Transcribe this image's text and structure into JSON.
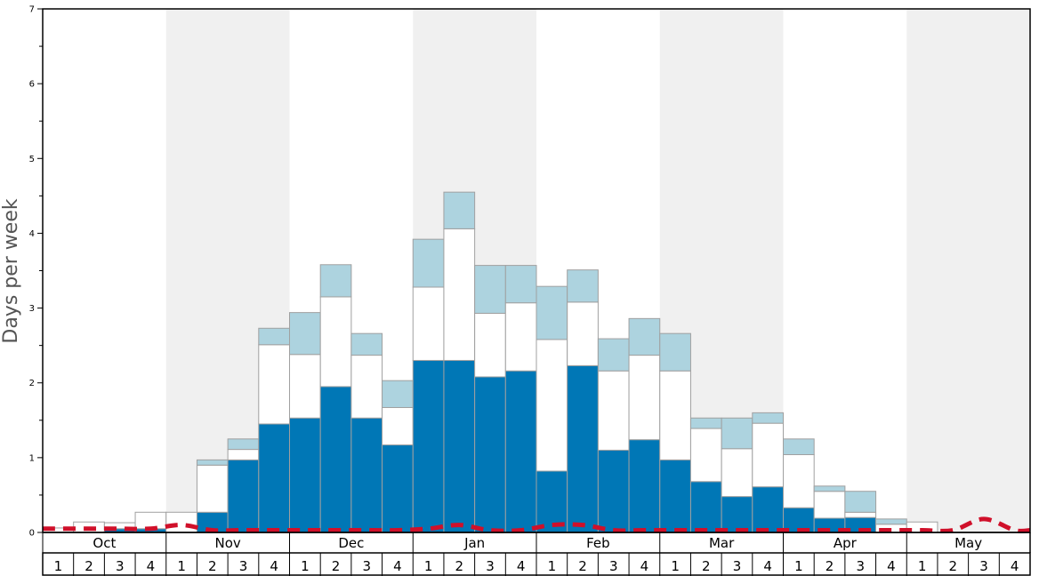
{
  "chart_data": {
    "type": "bar",
    "stacked": true,
    "ylabel": "Days per week",
    "ylim": [
      0,
      7
    ],
    "yticks": [
      "0",
      "1",
      "2",
      "3",
      "4",
      "5",
      "6",
      "7"
    ],
    "months": [
      "Oct",
      "Nov",
      "Dec",
      "Jan",
      "Feb",
      "Mar",
      "Apr",
      "May"
    ],
    "week_labels": [
      "1",
      "2",
      "3",
      "4"
    ],
    "shaded_months": [
      "Nov",
      "Jan",
      "Mar",
      "May"
    ],
    "colors": {
      "dark": "#0077b6",
      "white": "#ffffff",
      "light": "#add3df",
      "line": "#d0102a",
      "shade": "#f0f0f0",
      "bar_stroke": "#a0a0a0"
    },
    "series": [
      {
        "color": "#0077b6",
        "values": [
          0,
          0,
          0.05,
          0.05,
          0,
          0.27,
          0.97,
          1.45,
          1.53,
          1.95,
          1.53,
          1.17,
          2.3,
          2.3,
          2.08,
          2.16,
          0.82,
          2.23,
          1.1,
          1.24,
          0.97,
          0.68,
          0.48,
          0.61,
          0.33,
          0.19,
          0.2,
          0,
          0,
          0,
          0,
          0
        ]
      },
      {
        "color": "#ffffff",
        "values": [
          0.06,
          0.14,
          0.08,
          0.22,
          0.27,
          0.63,
          0.14,
          1.06,
          0.85,
          1.2,
          0.84,
          0.5,
          0.98,
          1.76,
          0.85,
          0.91,
          1.76,
          0.85,
          1.06,
          1.13,
          1.19,
          0.71,
          0.64,
          0.85,
          0.71,
          0.36,
          0.07,
          0.11,
          0.14,
          0,
          0,
          0
        ]
      },
      {
        "color": "#add3df",
        "values": [
          0,
          0,
          0,
          0,
          0,
          0.07,
          0.14,
          0.22,
          0.56,
          0.43,
          0.29,
          0.36,
          0.64,
          0.49,
          0.64,
          0.5,
          0.71,
          0.43,
          0.43,
          0.49,
          0.5,
          0.14,
          0.41,
          0.14,
          0.21,
          0.07,
          0.28,
          0.07,
          0,
          0,
          0,
          0
        ]
      }
    ],
    "line": {
      "color": "#d0102a",
      "style": "dashed",
      "values": [
        0.05,
        0.05,
        0.05,
        0.05,
        0.1,
        0.03,
        0.03,
        0.03,
        0.03,
        0.03,
        0.03,
        0.03,
        0.05,
        0.1,
        0.03,
        0.03,
        0.1,
        0.1,
        0.03,
        0.03,
        0.03,
        0.03,
        0.03,
        0.03,
        0.03,
        0.03,
        0.03,
        0.03,
        0.03,
        0.03,
        0.18,
        0.03
      ]
    }
  }
}
